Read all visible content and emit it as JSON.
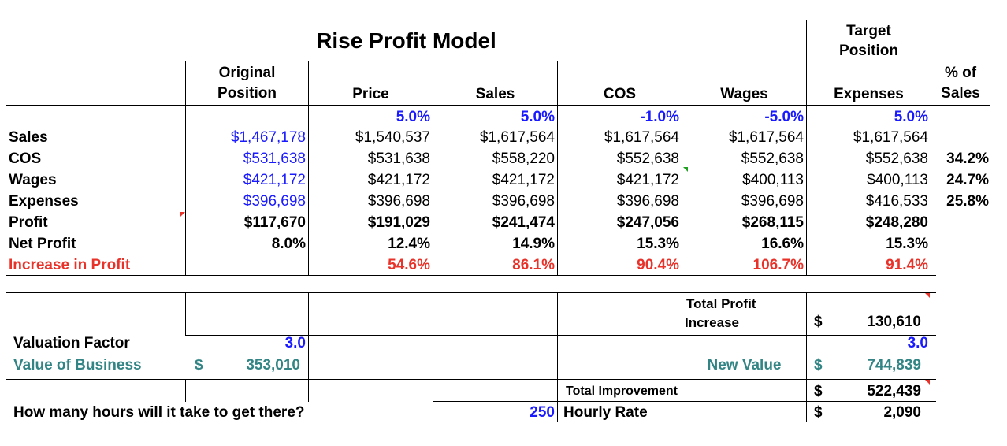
{
  "title": "Rise Profit Model",
  "target_position_label": [
    "Target",
    "Position"
  ],
  "headers": {
    "original_position": [
      "Original",
      "Position"
    ],
    "price": "Price",
    "sales": "Sales",
    "cos": "COS",
    "wages": "Wages",
    "expenses": "Expenses",
    "pct_of_sales": [
      "% of",
      "Sales"
    ]
  },
  "percent_changes": {
    "price": "5.0%",
    "sales": "5.0%",
    "cos": "-1.0%",
    "wages": "-5.0%",
    "expenses": "5.0%"
  },
  "rows": {
    "sales": {
      "label": "Sales",
      "values": [
        "$1,467,178",
        "$1,540,537",
        "$1,617,564",
        "$1,617,564",
        "$1,617,564",
        "$1,617,564"
      ],
      "pct": ""
    },
    "cos": {
      "label": "COS",
      "values": [
        "$531,638",
        "$531,638",
        "$558,220",
        "$552,638",
        "$552,638",
        "$552,638"
      ],
      "pct": "34.2%"
    },
    "wages": {
      "label": "Wages",
      "values": [
        "$421,172",
        "$421,172",
        "$421,172",
        "$421,172",
        "$400,113",
        "$400,113"
      ],
      "pct": "24.7%"
    },
    "expenses": {
      "label": "Expenses",
      "values": [
        "$396,698",
        "$396,698",
        "$396,698",
        "$396,698",
        "$396,698",
        "$416,533"
      ],
      "pct": "25.8%"
    },
    "profit": {
      "label": "Profit",
      "values": [
        "$117,670",
        "$191,029",
        "$241,474",
        "$247,056",
        "$268,115",
        "$248,280"
      ]
    },
    "net_profit": {
      "label": "Net Profit",
      "values": [
        "8.0%",
        "12.4%",
        "14.9%",
        "15.3%",
        "16.6%",
        "15.3%"
      ]
    },
    "increase_in_profit": {
      "label": "Increase in Profit",
      "values": [
        "",
        "54.6%",
        "86.1%",
        "90.4%",
        "106.7%",
        "91.4%"
      ]
    }
  },
  "summary": {
    "total_profit_increase_label": [
      "Total Profit",
      "Increase"
    ],
    "total_profit_increase_currency": "$",
    "total_profit_increase_value": "130,610",
    "valuation_factor_label": "Valuation Factor",
    "valuation_factor_value": "3.0",
    "valuation_factor_target": "3.0",
    "value_of_business_label": "Value of Business",
    "value_of_business_currency": "$",
    "value_of_business_value": "353,010",
    "new_value_label": "New Value",
    "new_value_currency": "$",
    "new_value_value": "744,839",
    "total_improvement_label": "Total Improvement",
    "total_improvement_currency": "$",
    "total_improvement_value": "522,439",
    "hours_question": "How many hours will it take to get there?",
    "hours_value": "250",
    "hourly_rate_label": "Hourly Rate",
    "hourly_rate_currency": "$",
    "hourly_rate_value": "2,090"
  },
  "colors": {
    "input_blue": "#1a1aff",
    "increase_red": "#e8332a",
    "teal": "#338585",
    "comment_marker_red": "#e8332a",
    "comment_marker_green": "#22a022"
  }
}
